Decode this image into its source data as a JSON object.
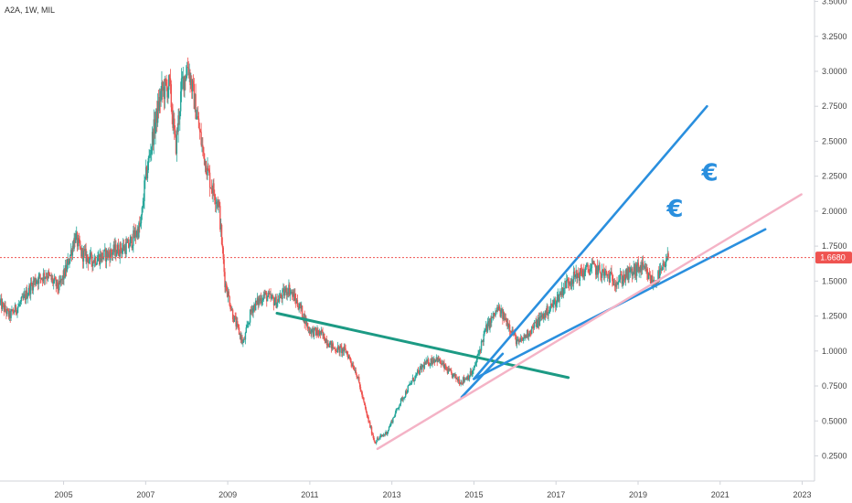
{
  "header": {
    "symbol_label": "A2A, 1W, MIL"
  },
  "colors": {
    "up": "#26a69a",
    "down": "#ef5350",
    "price_line": "#ef5350",
    "trend_teal": "#1c9a84",
    "trend_blue": "#2a8fde",
    "trend_pink": "#f4b3c6",
    "euro": "#2a8fde",
    "axis_border": "#d0d3d9"
  },
  "annotations": [
    {
      "type": "text",
      "text": "€",
      "x": 2020.75,
      "y": 2.22
    },
    {
      "type": "text",
      "text": "€",
      "x": 2019.9,
      "y": 1.96
    }
  ],
  "chart_data": {
    "type": "candlestick",
    "title": "",
    "xlabel": "",
    "ylabel": "",
    "x_ticks": [
      "2005",
      "2007",
      "2009",
      "2011",
      "2013",
      "2015",
      "2017",
      "2019",
      "2021",
      "2023"
    ],
    "x_tick_values": [
      2005,
      2007,
      2009,
      2011,
      2013,
      2015,
      2017,
      2019,
      2021,
      2023
    ],
    "y_ticks": [
      "0.2500",
      "0.5000",
      "0.7500",
      "1.0000",
      "1.2500",
      "1.5000",
      "1.7500",
      "2.0000",
      "2.2500",
      "2.5000",
      "2.7500",
      "3.0000",
      "3.2500",
      "3.5000"
    ],
    "y_tick_values": [
      0.25,
      0.5,
      0.75,
      1.0,
      1.25,
      1.5,
      1.75,
      2.0,
      2.25,
      2.5,
      2.75,
      3.0,
      3.25,
      3.5
    ],
    "xlim": [
      2003.45,
      2023.3
    ],
    "ylim": [
      0.07,
      3.51
    ],
    "last_price": 1.668,
    "last_price_label": "1.6680",
    "price_path": [
      [
        2003.45,
        1.35
      ],
      [
        2003.7,
        1.25
      ],
      [
        2004.0,
        1.35
      ],
      [
        2004.3,
        1.5
      ],
      [
        2004.6,
        1.55
      ],
      [
        2004.9,
        1.45
      ],
      [
        2005.1,
        1.6
      ],
      [
        2005.3,
        1.82
      ],
      [
        2005.45,
        1.7
      ],
      [
        2005.7,
        1.65
      ],
      [
        2006.0,
        1.68
      ],
      [
        2006.3,
        1.72
      ],
      [
        2006.6,
        1.75
      ],
      [
        2006.9,
        1.9
      ],
      [
        2007.0,
        2.2
      ],
      [
        2007.2,
        2.55
      ],
      [
        2007.4,
        2.85
      ],
      [
        2007.6,
        2.9
      ],
      [
        2007.75,
        2.45
      ],
      [
        2007.9,
        2.9
      ],
      [
        2008.05,
        3.05
      ],
      [
        2008.2,
        2.8
      ],
      [
        2008.4,
        2.45
      ],
      [
        2008.6,
        2.2
      ],
      [
        2008.8,
        2.05
      ],
      [
        2008.95,
        1.5
      ],
      [
        2009.15,
        1.25
      ],
      [
        2009.4,
        1.05
      ],
      [
        2009.6,
        1.3
      ],
      [
        2009.9,
        1.4
      ],
      [
        2010.2,
        1.35
      ],
      [
        2010.5,
        1.45
      ],
      [
        2010.8,
        1.3
      ],
      [
        2011.0,
        1.15
      ],
      [
        2011.3,
        1.12
      ],
      [
        2011.6,
        1.02
      ],
      [
        2011.9,
        1.0
      ],
      [
        2012.15,
        0.85
      ],
      [
        2012.4,
        0.55
      ],
      [
        2012.6,
        0.35
      ],
      [
        2012.9,
        0.42
      ],
      [
        2013.2,
        0.62
      ],
      [
        2013.5,
        0.78
      ],
      [
        2013.8,
        0.9
      ],
      [
        2014.1,
        0.95
      ],
      [
        2014.4,
        0.85
      ],
      [
        2014.7,
        0.78
      ],
      [
        2015.0,
        0.85
      ],
      [
        2015.3,
        1.15
      ],
      [
        2015.6,
        1.3
      ],
      [
        2015.85,
        1.2
      ],
      [
        2016.1,
        1.05
      ],
      [
        2016.4,
        1.15
      ],
      [
        2016.7,
        1.25
      ],
      [
        2017.0,
        1.35
      ],
      [
        2017.3,
        1.5
      ],
      [
        2017.6,
        1.55
      ],
      [
        2017.9,
        1.6
      ],
      [
        2018.2,
        1.55
      ],
      [
        2018.5,
        1.5
      ],
      [
        2018.8,
        1.55
      ],
      [
        2019.1,
        1.6
      ],
      [
        2019.4,
        1.48
      ],
      [
        2019.7,
        1.62
      ],
      [
        2019.75,
        1.668
      ]
    ],
    "trendlines": [
      {
        "color_key": "trend_teal",
        "x1": 2010.2,
        "y1": 1.27,
        "x2": 2017.3,
        "y2": 0.81,
        "width": 3
      },
      {
        "color_key": "trend_blue",
        "x1": 2015.0,
        "y1": 0.8,
        "x2": 2020.68,
        "y2": 2.75,
        "width": 2.6
      },
      {
        "color_key": "trend_blue",
        "x1": 2015.0,
        "y1": 0.8,
        "x2": 2022.1,
        "y2": 1.87,
        "width": 2.6
      },
      {
        "color_key": "trend_blue",
        "x1": 2014.7,
        "y1": 0.67,
        "x2": 2015.7,
        "y2": 0.98,
        "width": 2.6
      },
      {
        "color_key": "trend_pink",
        "x1": 2012.65,
        "y1": 0.3,
        "x2": 2022.98,
        "y2": 2.12,
        "width": 2.4
      }
    ]
  }
}
